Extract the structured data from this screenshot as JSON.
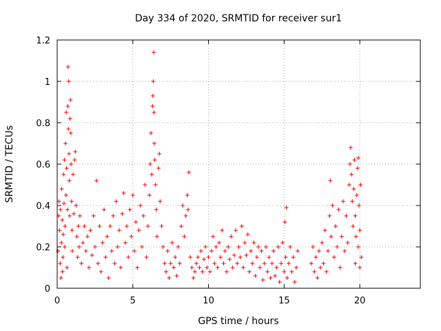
{
  "chart_data": {
    "type": "scatter",
    "title": "Day 334 of 2020, SRMTID for receiver sur1",
    "xlabel": "GPS time / hours",
    "ylabel": "SRMTID / TECUs",
    "xlim": [
      0,
      24
    ],
    "ylim": [
      0,
      1.2
    ],
    "xticks": [
      0,
      5,
      10,
      15,
      20
    ],
    "xtick_labels": [
      "0",
      "5",
      "10",
      "15",
      "20"
    ],
    "yticks": [
      0,
      0.2,
      0.4,
      0.6,
      0.8,
      1,
      1.2
    ],
    "ytick_labels": [
      "0",
      "0.2",
      "0.4",
      "0.6",
      "0.8",
      "1",
      "1.2"
    ],
    "grid": true,
    "marker": "+",
    "color": "#ee0000",
    "series": [
      {
        "name": "sur1",
        "points": [
          [
            0.05,
            0.18
          ],
          [
            0.1,
            0.35
          ],
          [
            0.12,
            0.42
          ],
          [
            0.15,
            0.28
          ],
          [
            0.2,
            0.12
          ],
          [
            0.22,
            0.38
          ],
          [
            0.25,
            0.05
          ],
          [
            0.28,
            0.22
          ],
          [
            0.3,
            0.48
          ],
          [
            0.33,
            0.33
          ],
          [
            0.35,
            0.08
          ],
          [
            0.38,
            0.15
          ],
          [
            0.4,
            0.26
          ],
          [
            0.42,
            0.55
          ],
          [
            0.45,
            0.41
          ],
          [
            0.48,
            0.62
          ],
          [
            0.5,
            0.2
          ],
          [
            0.52,
            0.3
          ],
          [
            0.55,
            0.7
          ],
          [
            0.58,
            0.45
          ],
          [
            0.6,
            0.85
          ],
          [
            0.62,
            0.58
          ],
          [
            0.65,
            0.1
          ],
          [
            0.68,
            0.38
          ],
          [
            0.7,
            0.88
          ],
          [
            0.72,
            1.07
          ],
          [
            0.74,
            0.77
          ],
          [
            0.76,
            1.0
          ],
          [
            0.78,
            0.65
          ],
          [
            0.8,
            0.52
          ],
          [
            0.82,
            0.35
          ],
          [
            0.85,
            0.82
          ],
          [
            0.88,
            0.91
          ],
          [
            0.9,
            0.75
          ],
          [
            0.92,
            0.6
          ],
          [
            0.95,
            0.42
          ],
          [
            0.98,
            0.28
          ],
          [
            1.0,
            0.18
          ],
          [
            1.05,
            0.55
          ],
          [
            1.1,
            0.36
          ],
          [
            1.15,
            0.62
          ],
          [
            1.2,
            0.66
          ],
          [
            1.25,
            0.4
          ],
          [
            1.3,
            0.25
          ],
          [
            1.35,
            0.15
          ],
          [
            1.4,
            0.3
          ],
          [
            1.45,
            0.2
          ],
          [
            1.5,
            0.35
          ],
          [
            1.6,
            0.12
          ],
          [
            1.7,
            0.22
          ],
          [
            1.8,
            0.3
          ],
          [
            1.9,
            0.18
          ],
          [
            2.0,
            0.25
          ],
          [
            2.1,
            0.1
          ],
          [
            2.2,
            0.28
          ],
          [
            2.3,
            0.16
          ],
          [
            2.4,
            0.35
          ],
          [
            2.5,
            0.2
          ],
          [
            2.6,
            0.52
          ],
          [
            2.7,
            0.12
          ],
          [
            2.8,
            0.3
          ],
          [
            2.9,
            0.08
          ],
          [
            3.0,
            0.22
          ],
          [
            3.1,
            0.38
          ],
          [
            3.2,
            0.15
          ],
          [
            3.3,
            0.25
          ],
          [
            3.4,
            0.05
          ],
          [
            3.5,
            0.3
          ],
          [
            3.6,
            0.18
          ],
          [
            3.7,
            0.35
          ],
          [
            3.8,
            0.12
          ],
          [
            3.9,
            0.42
          ],
          [
            4.0,
            0.2
          ],
          [
            4.1,
            0.28
          ],
          [
            4.2,
            0.1
          ],
          [
            4.3,
            0.36
          ],
          [
            4.4,
            0.46
          ],
          [
            4.5,
            0.22
          ],
          [
            4.6,
            0.3
          ],
          [
            4.7,
            0.15
          ],
          [
            4.8,
            0.38
          ],
          [
            4.9,
            0.25
          ],
          [
            5.0,
            0.45
          ],
          [
            5.1,
            0.18
          ],
          [
            5.2,
            0.32
          ],
          [
            5.3,
            0.1
          ],
          [
            5.4,
            0.28
          ],
          [
            5.5,
            0.4
          ],
          [
            5.6,
            0.2
          ],
          [
            5.7,
            0.35
          ],
          [
            5.8,
            0.5
          ],
          [
            5.9,
            0.15
          ],
          [
            6.0,
            0.3
          ],
          [
            6.1,
            0.45
          ],
          [
            6.15,
            0.6
          ],
          [
            6.2,
            0.75
          ],
          [
            6.25,
            0.55
          ],
          [
            6.3,
            0.88
          ],
          [
            6.32,
            0.93
          ],
          [
            6.35,
            1.0
          ],
          [
            6.38,
            1.14
          ],
          [
            6.4,
            0.85
          ],
          [
            6.42,
            0.7
          ],
          [
            6.45,
            0.62
          ],
          [
            6.5,
            0.5
          ],
          [
            6.55,
            0.38
          ],
          [
            6.6,
            0.25
          ],
          [
            6.7,
            0.58
          ],
          [
            6.75,
            0.65
          ],
          [
            6.8,
            0.42
          ],
          [
            6.9,
            0.3
          ],
          [
            7.0,
            0.2
          ],
          [
            7.1,
            0.12
          ],
          [
            7.2,
            0.08
          ],
          [
            7.3,
            0.18
          ],
          [
            7.4,
            0.05
          ],
          [
            7.5,
            0.12
          ],
          [
            7.6,
            0.22
          ],
          [
            7.7,
            0.1
          ],
          [
            7.8,
            0.15
          ],
          [
            7.9,
            0.06
          ],
          [
            8.0,
            0.2
          ],
          [
            8.1,
            0.12
          ],
          [
            8.2,
            0.3
          ],
          [
            8.3,
            0.4
          ],
          [
            8.4,
            0.25
          ],
          [
            8.5,
            0.35
          ],
          [
            8.6,
            0.45
          ],
          [
            8.65,
            0.38
          ],
          [
            8.7,
            0.56
          ],
          [
            8.8,
            0.15
          ],
          [
            8.9,
            0.1
          ],
          [
            9.0,
            0.05
          ],
          [
            9.1,
            0.08
          ],
          [
            9.2,
            0.12
          ],
          [
            9.3,
            0.15
          ],
          [
            9.4,
            0.1
          ],
          [
            9.5,
            0.18
          ],
          [
            9.6,
            0.08
          ],
          [
            9.7,
            0.14
          ],
          [
            9.8,
            0.2
          ],
          [
            9.9,
            0.1
          ],
          [
            10.0,
            0.15
          ],
          [
            10.1,
            0.08
          ],
          [
            10.2,
            0.18
          ],
          [
            10.3,
            0.25
          ],
          [
            10.4,
            0.12
          ],
          [
            10.5,
            0.2
          ],
          [
            10.6,
            0.1
          ],
          [
            10.7,
            0.22
          ],
          [
            10.8,
            0.15
          ],
          [
            10.9,
            0.28
          ],
          [
            11.0,
            0.12
          ],
          [
            11.1,
            0.18
          ],
          [
            11.2,
            0.08
          ],
          [
            11.3,
            0.2
          ],
          [
            11.4,
            0.14
          ],
          [
            11.5,
            0.25
          ],
          [
            11.6,
            0.1
          ],
          [
            11.7,
            0.16
          ],
          [
            11.8,
            0.28
          ],
          [
            11.9,
            0.12
          ],
          [
            12.0,
            0.2
          ],
          [
            12.1,
            0.15
          ],
          [
            12.2,
            0.3
          ],
          [
            12.3,
            0.1
          ],
          [
            12.4,
            0.22
          ],
          [
            12.5,
            0.16
          ],
          [
            12.6,
            0.26
          ],
          [
            12.7,
            0.08
          ],
          [
            12.8,
            0.18
          ],
          [
            12.9,
            0.12
          ],
          [
            13.0,
            0.22
          ],
          [
            13.1,
            0.06
          ],
          [
            13.2,
            0.15
          ],
          [
            13.3,
            0.2
          ],
          [
            13.4,
            0.1
          ],
          [
            13.5,
            0.18
          ],
          [
            13.6,
            0.04
          ],
          [
            13.7,
            0.12
          ],
          [
            13.8,
            0.2
          ],
          [
            13.9,
            0.08
          ],
          [
            14.0,
            0.15
          ],
          [
            14.1,
            0.05
          ],
          [
            14.2,
            0.12
          ],
          [
            14.3,
            0.18
          ],
          [
            14.4,
            0.06
          ],
          [
            14.5,
            0.1
          ],
          [
            14.6,
            0.2
          ],
          [
            14.7,
            0.03
          ],
          [
            14.8,
            0.12
          ],
          [
            14.9,
            0.22
          ],
          [
            15.0,
            0.08
          ],
          [
            15.05,
            0.32
          ],
          [
            15.1,
            0.15
          ],
          [
            15.15,
            0.39
          ],
          [
            15.2,
            0.05
          ],
          [
            15.3,
            0.12
          ],
          [
            15.4,
            0.2
          ],
          [
            15.5,
            0.08
          ],
          [
            15.6,
            0.15
          ],
          [
            15.7,
            0.03
          ],
          [
            15.8,
            0.1
          ],
          [
            15.9,
            0.18
          ],
          [
            16.8,
            0.12
          ],
          [
            16.9,
            0.2
          ],
          [
            17.0,
            0.08
          ],
          [
            17.1,
            0.15
          ],
          [
            17.2,
            0.05
          ],
          [
            17.3,
            0.18
          ],
          [
            17.4,
            0.1
          ],
          [
            17.5,
            0.22
          ],
          [
            17.6,
            0.12
          ],
          [
            17.7,
            0.28
          ],
          [
            17.8,
            0.08
          ],
          [
            17.9,
            0.18
          ],
          [
            18.0,
            0.35
          ],
          [
            18.05,
            0.52
          ],
          [
            18.1,
            0.25
          ],
          [
            18.2,
            0.4
          ],
          [
            18.3,
            0.15
          ],
          [
            18.4,
            0.3
          ],
          [
            18.5,
            0.2
          ],
          [
            18.6,
            0.38
          ],
          [
            18.7,
            0.1
          ],
          [
            18.8,
            0.25
          ],
          [
            18.9,
            0.42
          ],
          [
            19.0,
            0.18
          ],
          [
            19.1,
            0.35
          ],
          [
            19.2,
            0.22
          ],
          [
            19.3,
            0.5
          ],
          [
            19.35,
            0.6
          ],
          [
            19.4,
            0.68
          ],
          [
            19.45,
            0.55
          ],
          [
            19.5,
            0.42
          ],
          [
            19.55,
            0.3
          ],
          [
            19.6,
            0.48
          ],
          [
            19.65,
            0.62
          ],
          [
            19.7,
            0.35
          ],
          [
            19.75,
            0.25
          ],
          [
            19.8,
            0.45
          ],
          [
            19.85,
            0.58
          ],
          [
            19.9,
            0.63
          ],
          [
            19.95,
            0.4
          ],
          [
            20.0,
            0.28
          ],
          [
            20.05,
            0.5
          ],
          [
            20.1,
            0.15
          ],
          [
            20.0,
            0.1
          ],
          [
            19.9,
            0.2
          ],
          [
            19.7,
            0.12
          ]
        ]
      }
    ]
  }
}
